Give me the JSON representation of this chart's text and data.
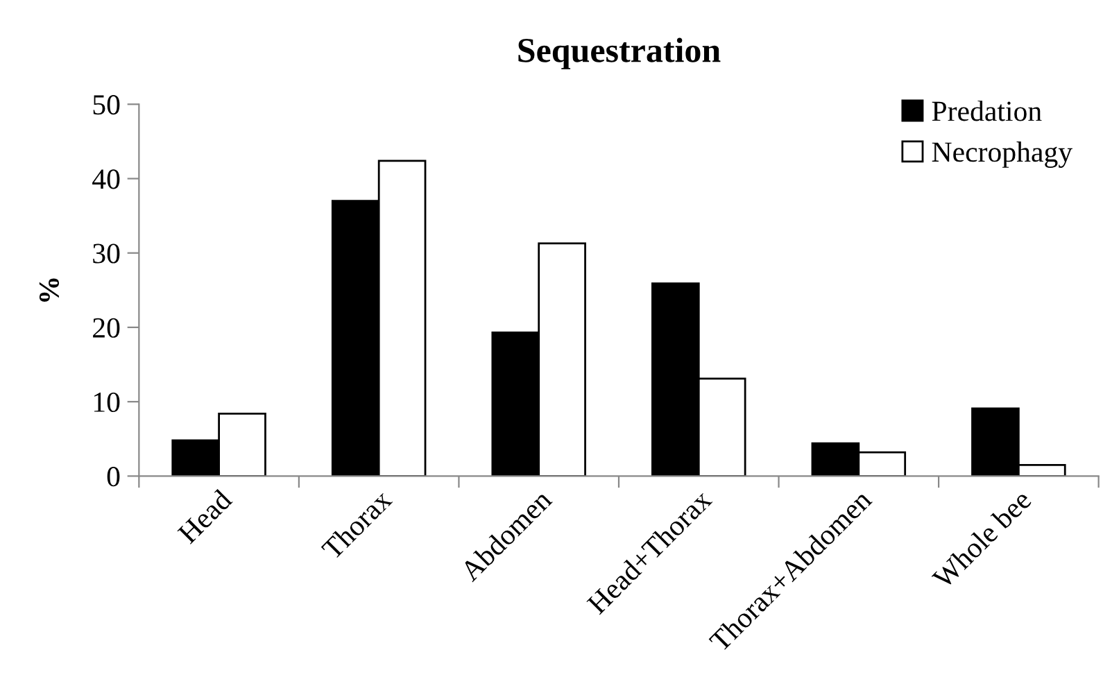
{
  "chart_data": {
    "type": "bar",
    "title": "Sequestration",
    "ylabel": "%",
    "categories": [
      "Head",
      "Thorax",
      "Abdomen",
      "Head+Thorax",
      "Thorax+Abdomen",
      "Whole bee"
    ],
    "series": [
      {
        "name": "Predation",
        "color": "#000000",
        "values": [
          4.8,
          37.0,
          19.3,
          25.9,
          4.4,
          9.1
        ]
      },
      {
        "name": "Necrophagy",
        "color": "#ffffff",
        "values": [
          8.4,
          42.4,
          31.3,
          13.1,
          3.2,
          1.5
        ]
      }
    ],
    "ylim": [
      0,
      50
    ],
    "yticks": [
      0,
      10,
      20,
      30,
      40,
      50
    ],
    "grid": false,
    "legend": "top right"
  }
}
